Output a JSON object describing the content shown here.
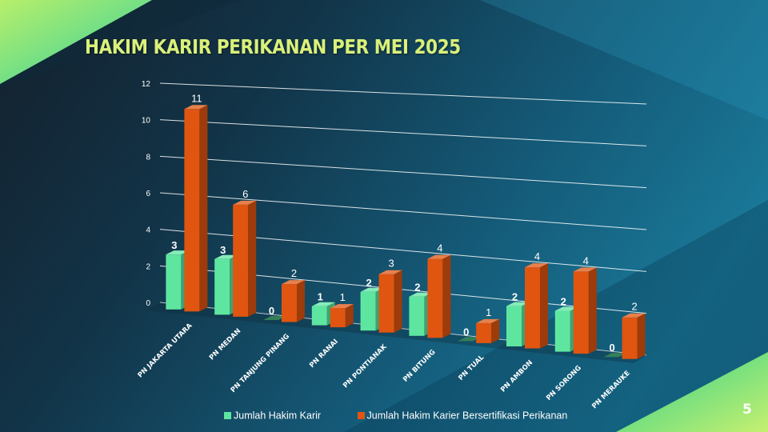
{
  "slide": {
    "title": "HAKIM KARIR PERIKANAN PER MEI 2025",
    "page_number": "5"
  },
  "colors": {
    "series_karir": "#5ee6a0",
    "series_sertifikasi": "#e05510",
    "accent_green": "#3cd88a",
    "title_text": "#d9f07a"
  },
  "chart_data": {
    "type": "bar",
    "view": "3d-clustered",
    "categories": [
      "PN JAKARTA UTARA",
      "PN MEDAN",
      "PN TANJUNG PINANG",
      "PN RANAI",
      "PN PONTIANAK",
      "PN BITUNG",
      "PN TUAL",
      "PN AMBON",
      "PN SORONG",
      "PN MERAUKE"
    ],
    "series": [
      {
        "name": "Jumlah Hakim Karir",
        "values": [
          3,
          3,
          0,
          1,
          2,
          2,
          0,
          2,
          2,
          0
        ]
      },
      {
        "name": "Jumlah Hakim Karier Bersertifikasi Perikanan",
        "values": [
          11,
          6,
          2,
          1,
          3,
          4,
          1,
          4,
          4,
          2
        ]
      }
    ],
    "ylim": [
      0,
      12
    ],
    "yticks": [
      0,
      2,
      4,
      6,
      8,
      10,
      12
    ],
    "grid": true,
    "legend_position": "bottom"
  }
}
